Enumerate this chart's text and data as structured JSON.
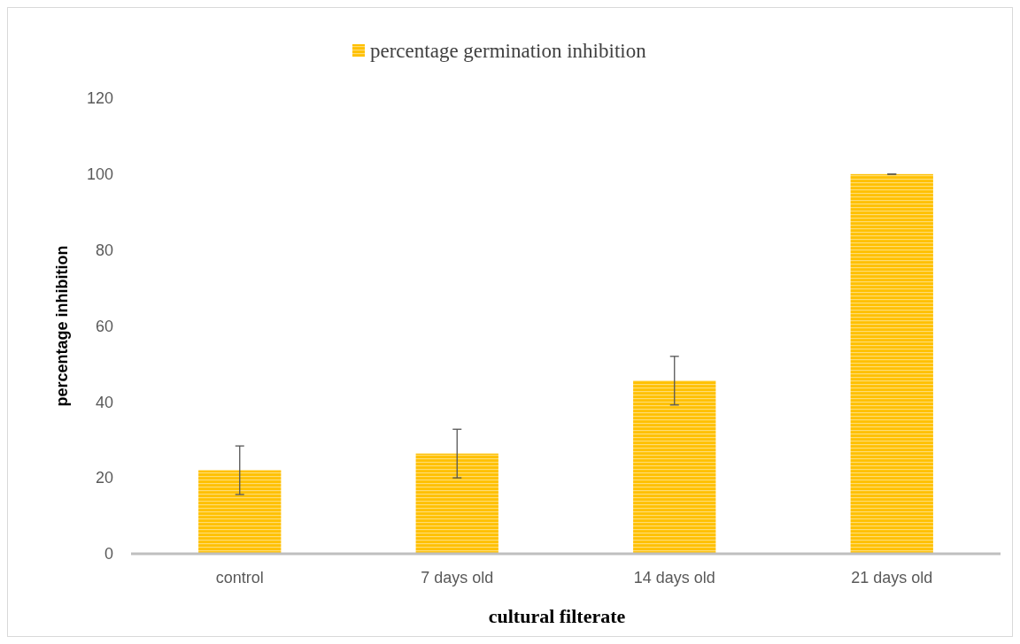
{
  "chart_data": {
    "type": "bar",
    "xlabel": "cultural filterate",
    "ylabel": "percentage inhibition",
    "categories": [
      "control",
      "7 days old",
      "14 days old",
      "21 days old"
    ],
    "series": [
      {
        "name": "percentage germination inhibition",
        "color": "#ffc000",
        "values": [
          22,
          26.4,
          45.6,
          100
        ],
        "errors": [
          6.4,
          6.4,
          6.4,
          0
        ]
      }
    ],
    "ylim": [
      0,
      120
    ],
    "yticks": [
      0,
      20,
      40,
      60,
      80,
      100,
      120
    ],
    "grid": false,
    "legend": "top"
  }
}
